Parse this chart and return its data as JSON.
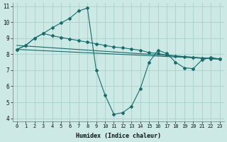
{
  "xlabel": "Humidex (Indice chaleur)",
  "xlim": [
    -0.5,
    23.5
  ],
  "ylim": [
    3.8,
    11.2
  ],
  "xticks": [
    0,
    1,
    2,
    3,
    4,
    5,
    6,
    7,
    8,
    9,
    10,
    11,
    12,
    13,
    14,
    15,
    16,
    17,
    18,
    19,
    20,
    21,
    22,
    23
  ],
  "yticks": [
    4,
    5,
    6,
    7,
    8,
    9,
    10,
    11
  ],
  "background_color": "#cce9e5",
  "grid_color": "#aacfca",
  "line_color": "#1a6b6b",
  "line1_x": [
    0,
    1,
    2,
    3,
    4,
    5,
    6,
    7,
    8,
    9,
    10,
    11,
    12,
    13,
    14,
    15,
    16,
    17,
    18,
    19,
    20,
    21,
    22,
    23
  ],
  "line1_y": [
    8.3,
    8.55,
    9.0,
    9.3,
    9.15,
    9.05,
    8.95,
    8.85,
    8.75,
    8.65,
    8.55,
    8.45,
    8.4,
    8.32,
    8.25,
    8.1,
    8.05,
    7.95,
    7.9,
    7.85,
    7.8,
    7.75,
    7.72,
    7.7
  ],
  "line2_x": [
    0,
    1,
    2,
    3,
    4,
    5,
    6,
    7,
    8,
    9,
    10,
    11,
    12,
    13,
    14,
    15,
    16,
    17,
    18,
    19,
    20,
    21,
    22,
    23
  ],
  "line2_y": [
    8.3,
    8.55,
    9.0,
    9.3,
    9.65,
    9.95,
    10.25,
    10.7,
    10.88,
    7.0,
    5.45,
    4.25,
    4.35,
    4.75,
    5.85,
    7.5,
    8.25,
    8.05,
    7.5,
    7.15,
    7.1,
    7.65,
    7.8,
    7.7
  ],
  "line3_x": [
    0,
    23
  ],
  "line3_y": [
    8.3,
    7.7
  ],
  "line4_x": [
    0,
    23
  ],
  "line4_y": [
    8.55,
    7.7
  ]
}
